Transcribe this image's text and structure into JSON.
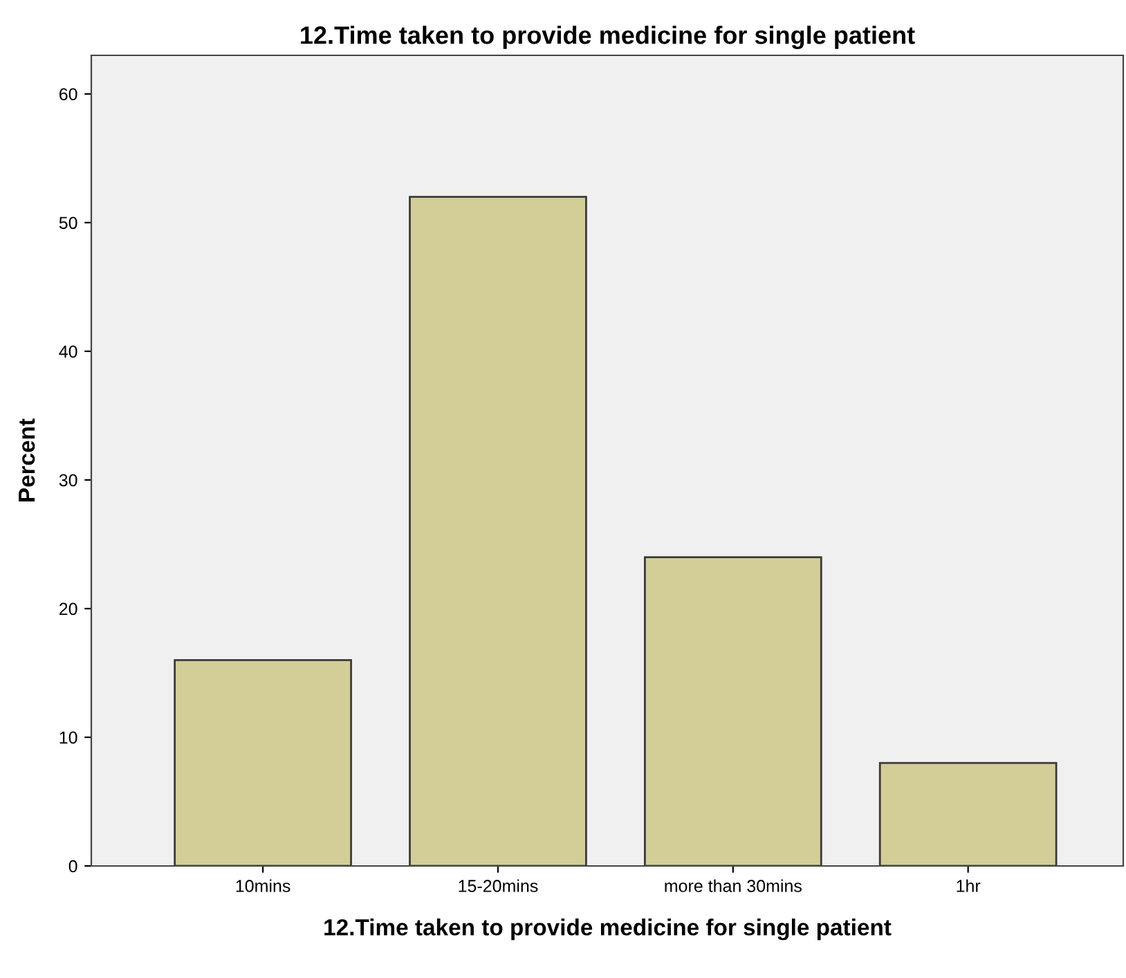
{
  "chart_data": {
    "type": "bar",
    "title": "12.Time taken to provide medicine for single patient",
    "xlabel": "12.Time taken to provide medicine for single patient",
    "ylabel": "Percent",
    "categories": [
      "10mins",
      "15-20mins",
      "more than 30mins",
      "1hr"
    ],
    "values": [
      16,
      52,
      24,
      8
    ],
    "color": "#d3ce98",
    "ylim": [
      0,
      63
    ],
    "yticks": [
      0,
      10,
      20,
      30,
      40,
      50,
      60
    ],
    "grid": false
  }
}
